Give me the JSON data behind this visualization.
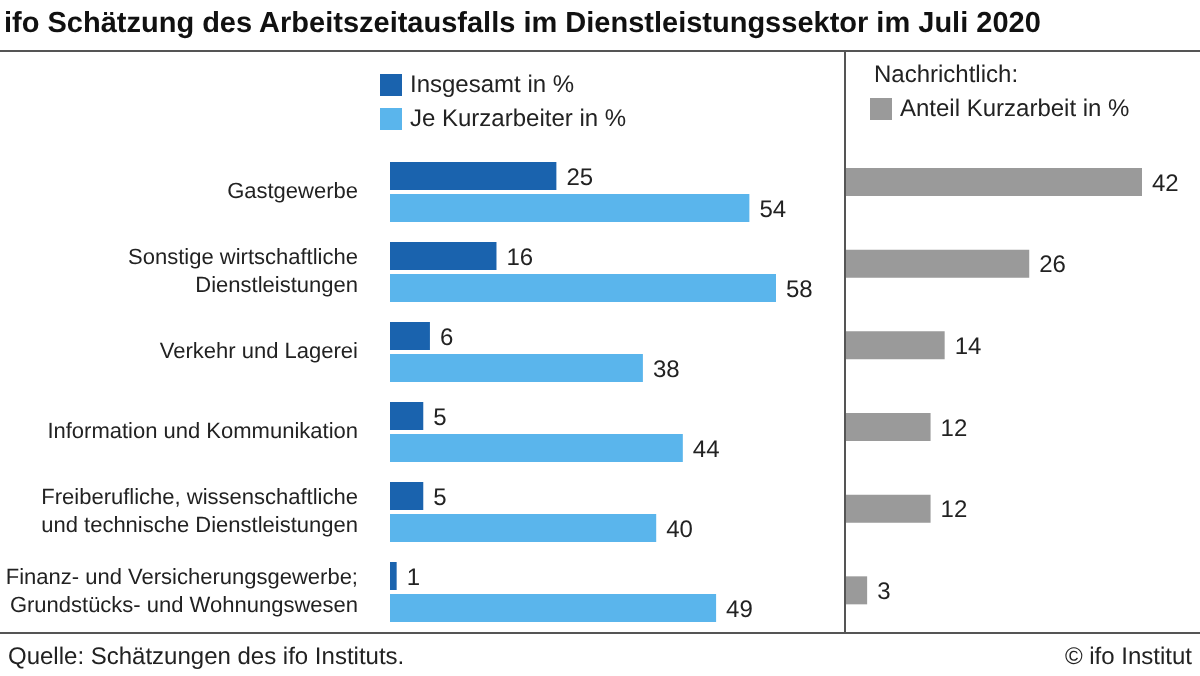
{
  "chart_data": [
    {
      "type": "bar",
      "orientation": "horizontal",
      "title": "ifo Schätzung des Arbeitszeitausfalls im Dienstleistungssektor im Juli 2020",
      "categories": [
        "Gastgewerbe",
        "Sonstige wirtschaftliche Dienstleistungen",
        "Verkehr und Lagerei",
        "Information und Kommunikation",
        "Freiberufliche, wissenschaftliche und technische Dienstleistungen",
        "Finanz- und Versicherungsgewerbe; Grundstücks- und Wohnungswesen"
      ],
      "series": [
        {
          "name": "Insgesamt in %",
          "color": "#1a63ae",
          "values": [
            25,
            16,
            6,
            5,
            5,
            1
          ]
        },
        {
          "name": "Je Kurzarbeiter in %",
          "color": "#5ab5ec",
          "values": [
            54,
            58,
            38,
            44,
            40,
            49
          ]
        }
      ],
      "data_labels": true,
      "legend": "top",
      "tick_labels": "y",
      "annotations": [
        "Quelle: Schätzungen des ifo Instituts.",
        "© ifo Institut"
      ]
    },
    {
      "type": "bar",
      "orientation": "horizontal",
      "title": "Nachrichtlich:",
      "categories": [
        null,
        null,
        null,
        null,
        null,
        null
      ],
      "series": [
        {
          "name": "Anteil Kurzarbeit in %",
          "color": "#9a9a9a",
          "values": [
            42,
            26,
            14,
            12,
            12,
            3
          ]
        }
      ],
      "data_labels": true,
      "legend": "top",
      "tick_labels": false
    }
  ]
}
